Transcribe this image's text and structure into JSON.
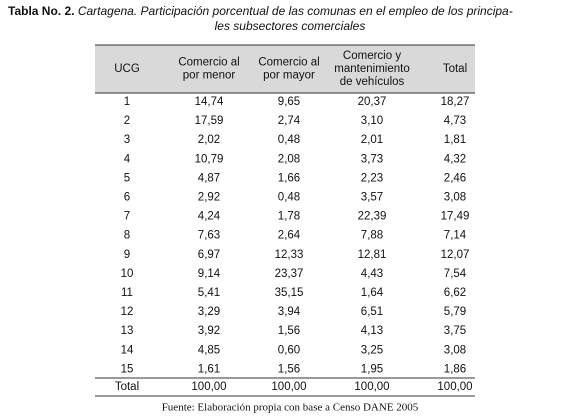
{
  "title": {
    "label": "Tabla No. 2.",
    "lines": [
      "Cartagena. Participación porcentual de las comunas en el empleo de los principa-",
      "les subsectores comerciales"
    ]
  },
  "table": {
    "headers": [
      [
        "UCG"
      ],
      [
        "Comercio al",
        "por menor"
      ],
      [
        "Comercio al",
        "por mayor"
      ],
      [
        "Comercio y",
        "mantenimiento",
        "de vehículos"
      ],
      [
        "Total"
      ]
    ],
    "rows": [
      [
        "1",
        "14,74",
        "9,65",
        "20,37",
        "18,27"
      ],
      [
        "2",
        "17,59",
        "2,74",
        "3,10",
        "4,73"
      ],
      [
        "3",
        "2,02",
        "0,48",
        "2,01",
        "1,81"
      ],
      [
        "4",
        "10,79",
        "2,08",
        "3,73",
        "4,32"
      ],
      [
        "5",
        "4,87",
        "1,66",
        "2,23",
        "2,46"
      ],
      [
        "6",
        "2,92",
        "0,48",
        "3,57",
        "3,08"
      ],
      [
        "7",
        "4,24",
        "1,78",
        "22,39",
        "17,49"
      ],
      [
        "8",
        "7,63",
        "2,64",
        "7,88",
        "7,14"
      ],
      [
        "9",
        "6,97",
        "12,33",
        "12,81",
        "12,07"
      ],
      [
        "10",
        "9,14",
        "23,37",
        "4,43",
        "7,54"
      ],
      [
        "11",
        "5,41",
        "35,15",
        "1,64",
        "6,62"
      ],
      [
        "12",
        "3,29",
        "3,94",
        "6,51",
        "5,79"
      ],
      [
        "13",
        "3,92",
        "1,56",
        "4,13",
        "3,75"
      ],
      [
        "14",
        "4,85",
        "0,60",
        "3,25",
        "3,08"
      ],
      [
        "15",
        "1,61",
        "1,56",
        "1,95",
        "1,86"
      ]
    ],
    "total": [
      "Total",
      "100,00",
      "100,00",
      "100,00",
      "100,00"
    ]
  },
  "source": "Fuente: Elaboración propia con base a Censo DANE 2005"
}
